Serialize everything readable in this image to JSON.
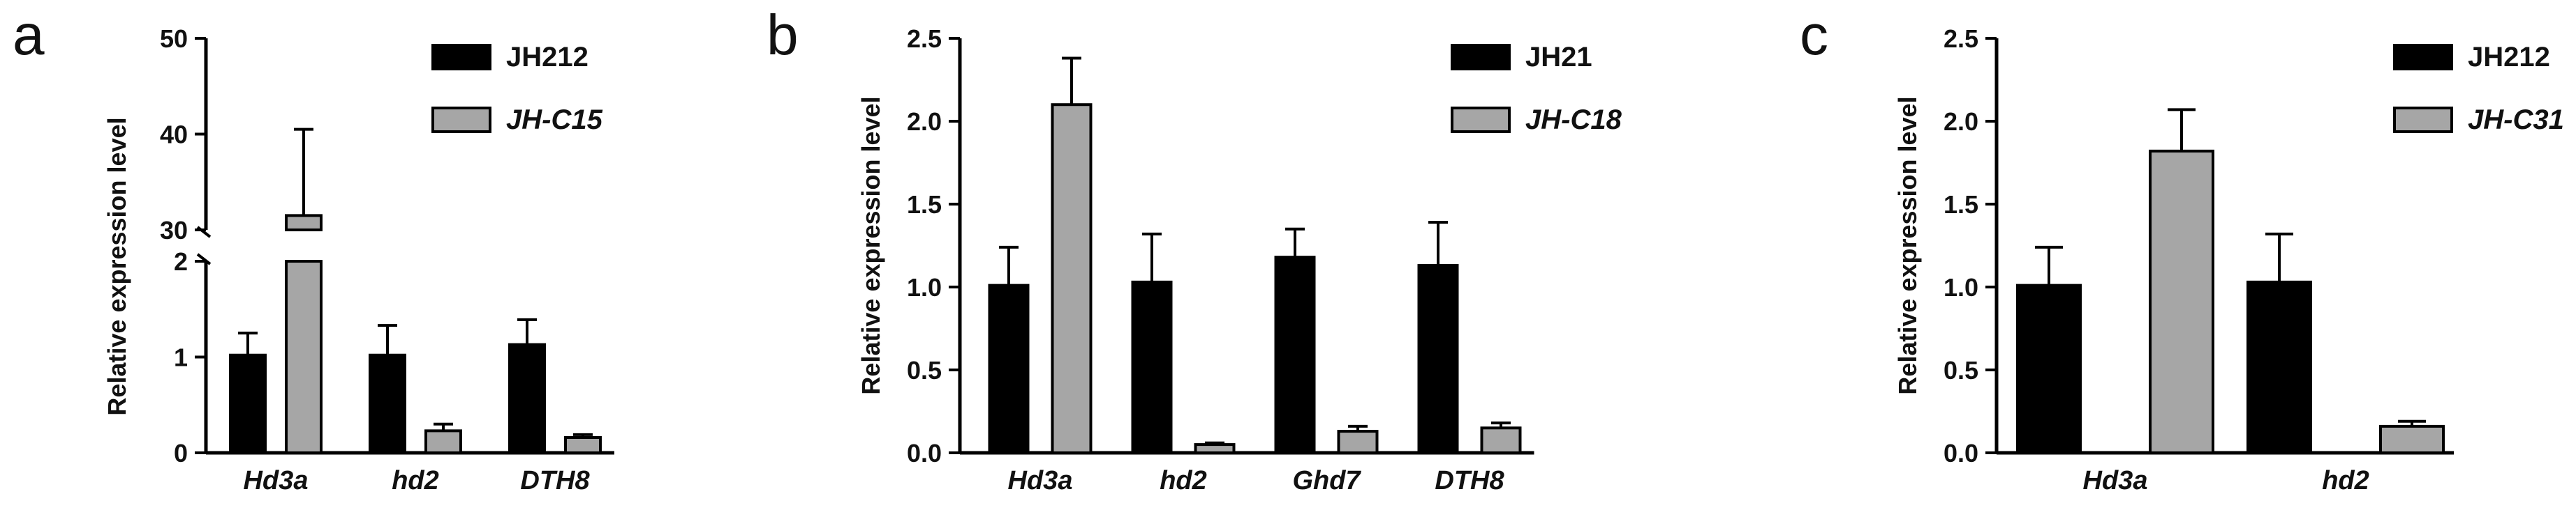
{
  "colors": {
    "control": "#000000",
    "mutant": "#a6a6a6",
    "axis": "#000000"
  },
  "chart_data": [
    {
      "panel": "a",
      "type": "bar",
      "ylabel": "Relative expression level",
      "categories": [
        "Hd3a",
        "hd2",
        "DTH8"
      ],
      "series": [
        {
          "name": "JH212",
          "italic": false,
          "values": [
            1.02,
            1.02,
            1.13
          ],
          "errors": [
            0.23,
            0.31,
            0.26
          ]
        },
        {
          "name": "JH-C15",
          "italic": true,
          "values": [
            31.5,
            0.23,
            0.16
          ],
          "errors": [
            9.0,
            0.07,
            0.03
          ]
        }
      ],
      "broken_axis": {
        "lower_ylim": [
          0,
          2
        ],
        "lower_ticks": [
          "0",
          "1",
          "2"
        ],
        "upper_ylim": [
          30,
          50
        ],
        "upper_ticks": [
          "30",
          "40",
          "50"
        ]
      }
    },
    {
      "panel": "b",
      "type": "bar",
      "ylabel": "Relative expression level",
      "categories": [
        "Hd3a",
        "hd2",
        "Ghd7",
        "DTH8"
      ],
      "series": [
        {
          "name": "JH21",
          "italic": false,
          "values": [
            1.01,
            1.03,
            1.18,
            1.13
          ],
          "errors": [
            0.23,
            0.29,
            0.17,
            0.26
          ]
        },
        {
          "name": "JH-C18",
          "italic": true,
          "values": [
            2.1,
            0.05,
            0.13,
            0.15
          ],
          "errors": [
            0.28,
            0.01,
            0.03,
            0.03
          ]
        }
      ],
      "ylim": [
        0,
        2.5
      ],
      "yticks": [
        "0.0",
        "0.5",
        "1.0",
        "1.5",
        "2.0",
        "2.5"
      ]
    },
    {
      "panel": "c",
      "type": "bar",
      "ylabel": "Relative expression level",
      "categories": [
        "Hd3a",
        "hd2"
      ],
      "series": [
        {
          "name": "JH212",
          "italic": false,
          "values": [
            1.01,
            1.03
          ],
          "errors": [
            0.23,
            0.29
          ]
        },
        {
          "name": "JH-C31",
          "italic": true,
          "values": [
            1.82,
            0.16
          ],
          "errors": [
            0.25,
            0.03
          ]
        }
      ],
      "ylim": [
        0,
        2.5
      ],
      "yticks": [
        "0.0",
        "0.5",
        "1.0",
        "1.5",
        "2.0",
        "2.5"
      ]
    }
  ]
}
